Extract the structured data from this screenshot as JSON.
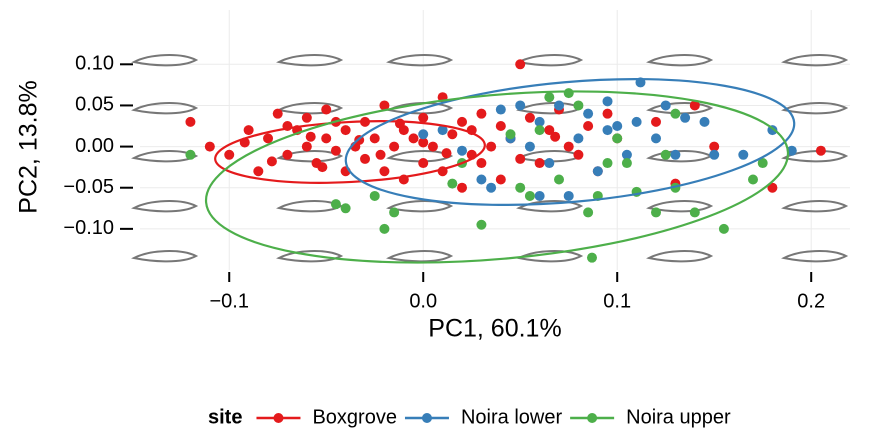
{
  "chart_data": {
    "type": "scatter",
    "x_label": "PC1, 60.1%",
    "y_label": "PC2, 13.8%",
    "xlim": [
      -0.146,
      0.22
    ],
    "ylim": [
      -0.15,
      0.166
    ],
    "xticks": [
      {
        "value": -0.1,
        "label": "−0.1"
      },
      {
        "value": 0,
        "label": "0.0"
      },
      0.1,
      0.2
    ],
    "yticks": [
      {
        "value": 0.1,
        "label": "0.10"
      },
      0.05,
      {
        "value": 0,
        "label": "0.00"
      },
      {
        "value": -0.05,
        "label": "−0.05"
      },
      {
        "value": -0.1,
        "label": "−0.10"
      }
    ],
    "grid": true,
    "legend_title": "site",
    "legend": "bottom",
    "series": [
      {
        "name": "Boxgrove",
        "color": "#e41a1c",
        "x": [
          -0.12,
          -0.11,
          -0.1,
          -0.09,
          -0.085,
          -0.08,
          -0.075,
          -0.07,
          -0.065,
          -0.06,
          -0.06,
          -0.055,
          -0.05,
          -0.05,
          -0.045,
          -0.04,
          -0.04,
          -0.035,
          -0.03,
          -0.03,
          -0.025,
          -0.02,
          -0.02,
          -0.015,
          -0.01,
          -0.01,
          -0.005,
          0.0,
          0.0,
          0.005,
          0.01,
          0.01,
          0.015,
          0.02,
          0.02,
          0.025,
          0.03,
          0.03,
          0.035,
          0.04,
          0.04,
          0.045,
          0.05,
          0.055,
          0.05,
          0.06,
          0.065,
          0.07,
          0.075,
          0.08,
          0.085,
          0.09,
          0.095,
          0.1,
          0.12,
          0.14,
          0.18,
          0.205,
          -0.07,
          -0.058,
          -0.045,
          -0.033,
          -0.022,
          -0.012,
          0.0,
          0.012,
          0.025,
          -0.092,
          -0.078,
          -0.052,
          0.15,
          0.13,
          0.068
        ],
        "y": [
          0.03,
          0.0,
          -0.01,
          0.02,
          -0.03,
          0.01,
          0.04,
          -0.01,
          0.02,
          0.0,
          0.035,
          -0.02,
          0.01,
          0.045,
          -0.005,
          0.02,
          -0.03,
          0.0,
          0.03,
          -0.015,
          0.01,
          0.05,
          -0.03,
          0.0,
          0.02,
          -0.04,
          0.01,
          0.035,
          -0.02,
          0.0,
          0.06,
          -0.03,
          0.015,
          -0.05,
          0.03,
          -0.01,
          0.04,
          -0.02,
          0.0,
          0.025,
          -0.04,
          0.01,
          -0.015,
          0.035,
          0.1,
          -0.02,
          0.02,
          0.045,
          0.0,
          -0.01,
          0.025,
          -0.03,
          0.04,
          0.01,
          0.03,
          0.05,
          -0.05,
          -0.005,
          0.025,
          0.012,
          0.03,
          0.008,
          -0.01,
          0.028,
          0.005,
          -0.008,
          0.02,
          0.005,
          -0.018,
          -0.025,
          0.0,
          -0.045,
          0.012
        ]
      },
      {
        "name": "Noira lower",
        "color": "#377eb8",
        "x": [
          0.0,
          0.01,
          0.02,
          0.03,
          0.035,
          0.045,
          0.05,
          0.055,
          0.06,
          0.065,
          0.07,
          0.075,
          0.08,
          0.085,
          0.09,
          0.095,
          0.1,
          0.105,
          0.11,
          0.112,
          0.12,
          0.13,
          0.135,
          0.145,
          0.15,
          0.165,
          0.18,
          0.19,
          0.095,
          0.04,
          0.06,
          0.125
        ],
        "y": [
          0.015,
          0.02,
          -0.005,
          -0.04,
          -0.05,
          0.01,
          0.05,
          0.0,
          0.03,
          -0.02,
          0.05,
          -0.06,
          0.01,
          0.04,
          -0.03,
          0.02,
          0.025,
          -0.01,
          0.03,
          0.078,
          0.01,
          -0.01,
          0.035,
          0.03,
          -0.01,
          -0.01,
          0.02,
          -0.005,
          0.055,
          0.045,
          -0.06,
          0.05
        ]
      },
      {
        "name": "Noira upper",
        "color": "#4daf4a",
        "x": [
          -0.12,
          -0.045,
          -0.04,
          -0.025,
          -0.015,
          -0.02,
          0.015,
          0.03,
          0.05,
          0.055,
          0.06,
          0.065,
          0.07,
          0.08,
          0.085,
          0.09,
          0.087,
          0.1,
          0.105,
          0.11,
          0.12,
          0.125,
          0.13,
          0.13,
          0.14,
          0.155,
          0.17,
          0.175,
          0.075,
          0.095,
          0.045,
          0.02
        ],
        "y": [
          -0.01,
          -0.07,
          -0.075,
          -0.06,
          -0.08,
          -0.1,
          -0.045,
          -0.095,
          -0.05,
          -0.06,
          0.02,
          0.06,
          -0.04,
          0.05,
          -0.08,
          -0.06,
          -0.135,
          0.01,
          -0.02,
          -0.055,
          -0.08,
          -0.01,
          0.04,
          -0.05,
          -0.08,
          -0.1,
          -0.04,
          -0.02,
          0.065,
          -0.02,
          0.015,
          -0.02
        ]
      }
    ]
  }
}
